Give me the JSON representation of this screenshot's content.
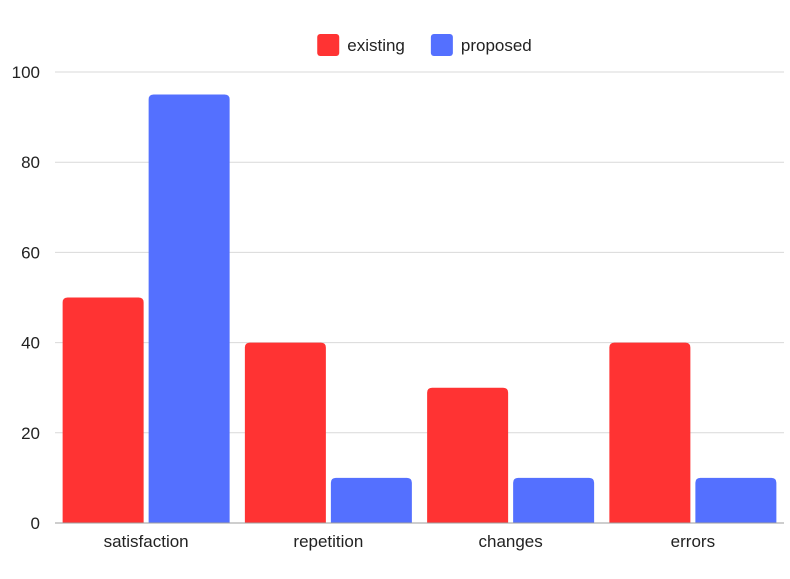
{
  "chart_data": {
    "type": "bar",
    "title": "",
    "xlabel": "",
    "ylabel": "",
    "categories": [
      "satisfaction",
      "repetition",
      "changes",
      "errors"
    ],
    "series": [
      {
        "name": "existing",
        "color": "#ff3333",
        "values": [
          50,
          40,
          30,
          40
        ]
      },
      {
        "name": "proposed",
        "color": "#5470ff",
        "values": [
          95,
          10,
          10,
          10
        ]
      }
    ],
    "ylim": [
      0,
      100
    ],
    "yticks": [
      0,
      20,
      40,
      60,
      80,
      100
    ],
    "grid": true,
    "legend_position": "top-center"
  }
}
